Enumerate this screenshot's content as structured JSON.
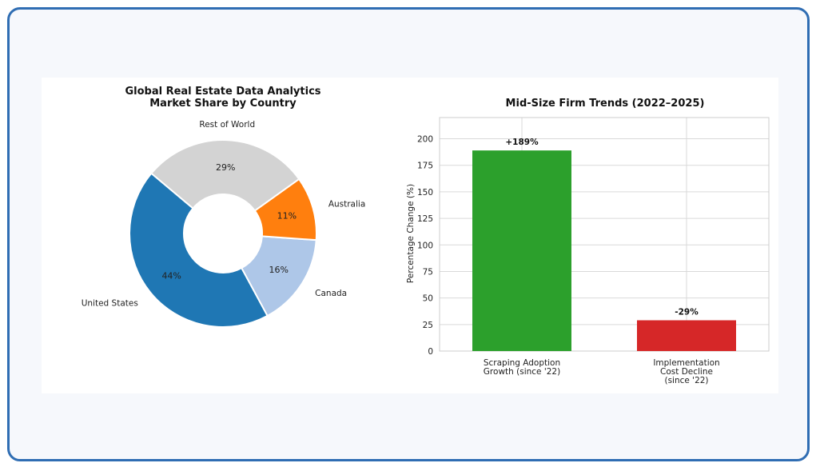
{
  "colors": {
    "frame": "#2f6db3",
    "us": "#1f77b4",
    "rest": "#d3d3d3",
    "australia": "#ff7f0e",
    "canada": "#aec7e8",
    "green": "#2ca02c",
    "red": "#d62728"
  },
  "chart_data": [
    {
      "type": "pie",
      "title_lines": [
        "Global Real Estate Data Analytics",
        "Market Share by Country"
      ],
      "labels": [
        "United States",
        "Canada",
        "Australia",
        "Rest of World"
      ],
      "values": [
        44,
        16,
        11,
        29
      ],
      "value_labels": [
        "44%",
        "16%",
        "11%",
        "29%"
      ],
      "donut": true
    },
    {
      "type": "bar",
      "title": "Mid-Size Firm Trends (2022–2025)",
      "categories": [
        [
          "Scraping Adoption",
          "Growth (since '22)"
        ],
        [
          "Implementation",
          "Cost Decline",
          "(since '22)"
        ]
      ],
      "values": [
        189,
        29
      ],
      "value_labels": [
        "+189%",
        "-29%"
      ],
      "ylabel": "Percentage Change (%)",
      "ylim": [
        0,
        220
      ],
      "yticks": [
        0,
        25,
        50,
        75,
        100,
        125,
        150,
        175,
        200
      ],
      "grid": true
    }
  ]
}
